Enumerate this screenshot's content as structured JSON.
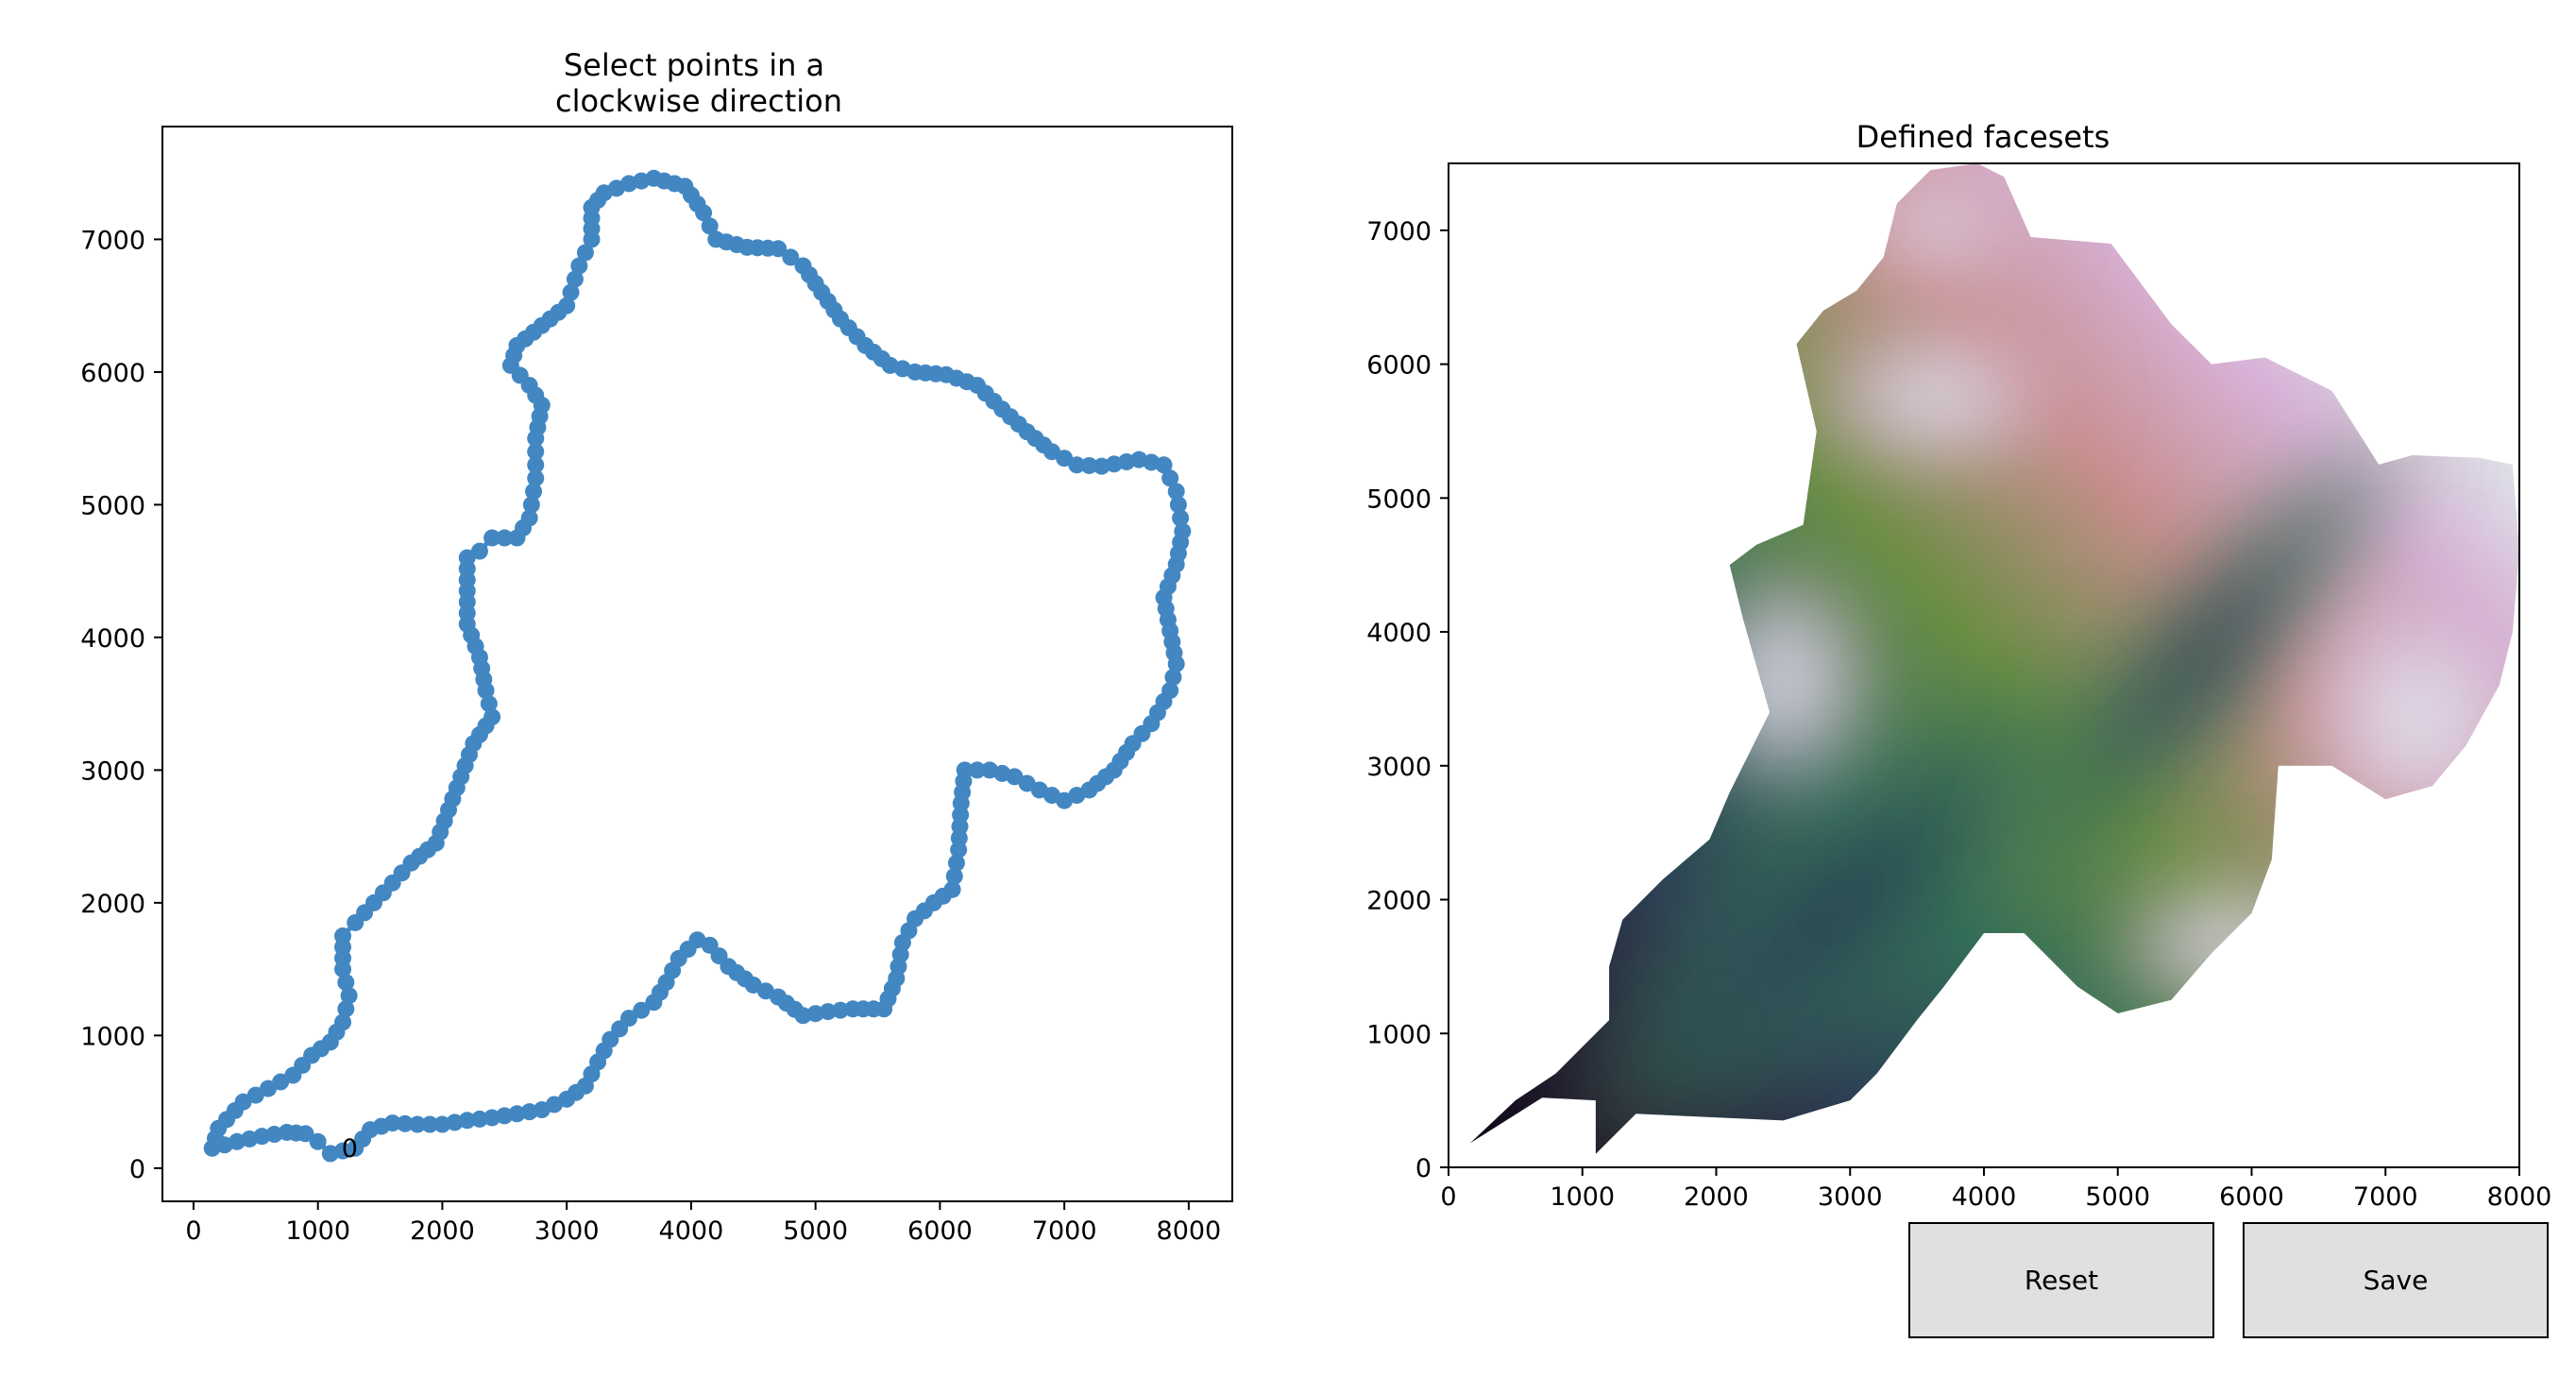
{
  "chart_data": [
    {
      "type": "scatter",
      "title": "Select points in a\nclockwise direction",
      "xlim": [
        -250,
        8350
      ],
      "ylim": [
        -250,
        7850
      ],
      "xticks": [
        0,
        1000,
        2000,
        3000,
        4000,
        5000,
        6000,
        7000,
        8000
      ],
      "yticks": [
        0,
        1000,
        2000,
        3000,
        4000,
        5000,
        6000,
        7000
      ],
      "marker_color": "#4287c2",
      "connected": true,
      "annotation": {
        "text": "0",
        "x": 1130,
        "y": 170
      },
      "points": [
        [
          1100,
          110
        ],
        [
          1300,
          150
        ],
        [
          1420,
          290
        ],
        [
          1600,
          340
        ],
        [
          1800,
          330
        ],
        [
          2000,
          330
        ],
        [
          2200,
          360
        ],
        [
          2400,
          380
        ],
        [
          2600,
          410
        ],
        [
          2800,
          440
        ],
        [
          3000,
          520
        ],
        [
          3150,
          620
        ],
        [
          3250,
          800
        ],
        [
          3350,
          970
        ],
        [
          3500,
          1130
        ],
        [
          3700,
          1250
        ],
        [
          3800,
          1400
        ],
        [
          3900,
          1580
        ],
        [
          4050,
          1720
        ],
        [
          4150,
          1680
        ],
        [
          4300,
          1520
        ],
        [
          4500,
          1380
        ],
        [
          4700,
          1290
        ],
        [
          4900,
          1150
        ],
        [
          5100,
          1180
        ],
        [
          5300,
          1200
        ],
        [
          5550,
          1200
        ],
        [
          5650,
          1430
        ],
        [
          5700,
          1700
        ],
        [
          5800,
          1880
        ],
        [
          5950,
          2000
        ],
        [
          6100,
          2100
        ],
        [
          6150,
          2400
        ],
        [
          6170,
          2750
        ],
        [
          6200,
          3000
        ],
        [
          6400,
          3000
        ],
        [
          6600,
          2950
        ],
        [
          6800,
          2850
        ],
        [
          7000,
          2770
        ],
        [
          7200,
          2850
        ],
        [
          7400,
          3000
        ],
        [
          7550,
          3200
        ],
        [
          7700,
          3350
        ],
        [
          7850,
          3600
        ],
        [
          7900,
          3800
        ],
        [
          7850,
          4050
        ],
        [
          7800,
          4300
        ],
        [
          7900,
          4550
        ],
        [
          7950,
          4800
        ],
        [
          7900,
          5100
        ],
        [
          7800,
          5300
        ],
        [
          7600,
          5340
        ],
        [
          7300,
          5290
        ],
        [
          7100,
          5300
        ],
        [
          6900,
          5400
        ],
        [
          6700,
          5550
        ],
        [
          6500,
          5720
        ],
        [
          6300,
          5900
        ],
        [
          6050,
          5980
        ],
        [
          5800,
          6000
        ],
        [
          5600,
          6050
        ],
        [
          5400,
          6200
        ],
        [
          5200,
          6400
        ],
        [
          5050,
          6600
        ],
        [
          4900,
          6800
        ],
        [
          4700,
          6930
        ],
        [
          4450,
          6940
        ],
        [
          4200,
          7000
        ],
        [
          4100,
          7200
        ],
        [
          3950,
          7400
        ],
        [
          3700,
          7460
        ],
        [
          3500,
          7420
        ],
        [
          3300,
          7350
        ],
        [
          3200,
          7240
        ],
        [
          3200,
          7000
        ],
        [
          3100,
          6800
        ],
        [
          3000,
          6500
        ],
        [
          2800,
          6350
        ],
        [
          2600,
          6200
        ],
        [
          2550,
          6050
        ],
        [
          2700,
          5900
        ],
        [
          2800,
          5750
        ],
        [
          2750,
          5500
        ],
        [
          2750,
          5200
        ],
        [
          2700,
          4900
        ],
        [
          2600,
          4750
        ],
        [
          2400,
          4750
        ],
        [
          2300,
          4650
        ],
        [
          2200,
          4600
        ],
        [
          2200,
          4350
        ],
        [
          2200,
          4100
        ],
        [
          2300,
          3850
        ],
        [
          2350,
          3600
        ],
        [
          2400,
          3400
        ],
        [
          2250,
          3200
        ],
        [
          2150,
          2950
        ],
        [
          2050,
          2700
        ],
        [
          1950,
          2450
        ],
        [
          1750,
          2300
        ],
        [
          1600,
          2150
        ],
        [
          1450,
          2000
        ],
        [
          1300,
          1850
        ],
        [
          1200,
          1750
        ],
        [
          1200,
          1500
        ],
        [
          1250,
          1300
        ],
        [
          1200,
          1100
        ],
        [
          1100,
          950
        ],
        [
          950,
          850
        ],
        [
          800,
          700
        ],
        [
          600,
          600
        ],
        [
          400,
          500
        ],
        [
          200,
          300
        ],
        [
          150,
          150
        ],
        [
          350,
          200
        ],
        [
          550,
          240
        ],
        [
          750,
          270
        ],
        [
          900,
          260
        ],
        [
          1000,
          200
        ],
        [
          1100,
          110
        ]
      ]
    },
    {
      "type": "heatmap",
      "title": "Defined facesets",
      "xlim": [
        0,
        8000
      ],
      "ylim": [
        0,
        7500
      ],
      "xticks": [
        0,
        1000,
        2000,
        3000,
        4000,
        5000,
        6000,
        7000,
        8000
      ],
      "yticks": [
        0,
        1000,
        2000,
        3000,
        4000,
        5000,
        6000,
        7000
      ],
      "colormap": "cubehelix",
      "colormap_stops": [
        "#0b0412",
        "#2c3050",
        "#2f6b5a",
        "#6b8e44",
        "#c78e8d",
        "#d8b2d8",
        "#e0f2ee"
      ],
      "outline": [
        [
          160,
          180
        ],
        [
          700,
          520
        ],
        [
          1100,
          500
        ],
        [
          1100,
          100
        ],
        [
          1400,
          400
        ],
        [
          2500,
          350
        ],
        [
          3000,
          500
        ],
        [
          3200,
          700
        ],
        [
          3500,
          1100
        ],
        [
          3700,
          1350
        ],
        [
          4000,
          1750
        ],
        [
          4300,
          1750
        ],
        [
          4700,
          1350
        ],
        [
          5000,
          1150
        ],
        [
          5400,
          1250
        ],
        [
          5700,
          1600
        ],
        [
          6000,
          1900
        ],
        [
          6150,
          2300
        ],
        [
          6200,
          3000
        ],
        [
          6600,
          3000
        ],
        [
          7000,
          2750
        ],
        [
          7350,
          2850
        ],
        [
          7600,
          3150
        ],
        [
          7850,
          3600
        ],
        [
          7950,
          4000
        ],
        [
          8000,
          4600
        ],
        [
          7950,
          5250
        ],
        [
          7700,
          5300
        ],
        [
          7200,
          5320
        ],
        [
          6950,
          5250
        ],
        [
          6600,
          5800
        ],
        [
          6100,
          6050
        ],
        [
          5700,
          6000
        ],
        [
          5400,
          6300
        ],
        [
          4950,
          6900
        ],
        [
          4350,
          6950
        ],
        [
          4150,
          7400
        ],
        [
          3950,
          7500
        ],
        [
          3600,
          7450
        ],
        [
          3350,
          7200
        ],
        [
          3250,
          6800
        ],
        [
          3050,
          6550
        ],
        [
          2800,
          6400
        ],
        [
          2600,
          6150
        ],
        [
          2750,
          5500
        ],
        [
          2650,
          4800
        ],
        [
          2300,
          4650
        ],
        [
          2100,
          4500
        ],
        [
          2200,
          4100
        ],
        [
          2400,
          3400
        ],
        [
          2100,
          2800
        ],
        [
          1950,
          2450
        ],
        [
          1600,
          2150
        ],
        [
          1300,
          1850
        ],
        [
          1200,
          1500
        ],
        [
          1200,
          1100
        ],
        [
          1000,
          900
        ],
        [
          800,
          700
        ],
        [
          500,
          500
        ],
        [
          160,
          180
        ]
      ]
    }
  ],
  "buttons": {
    "reset_label": "Reset",
    "save_label": "Save"
  }
}
